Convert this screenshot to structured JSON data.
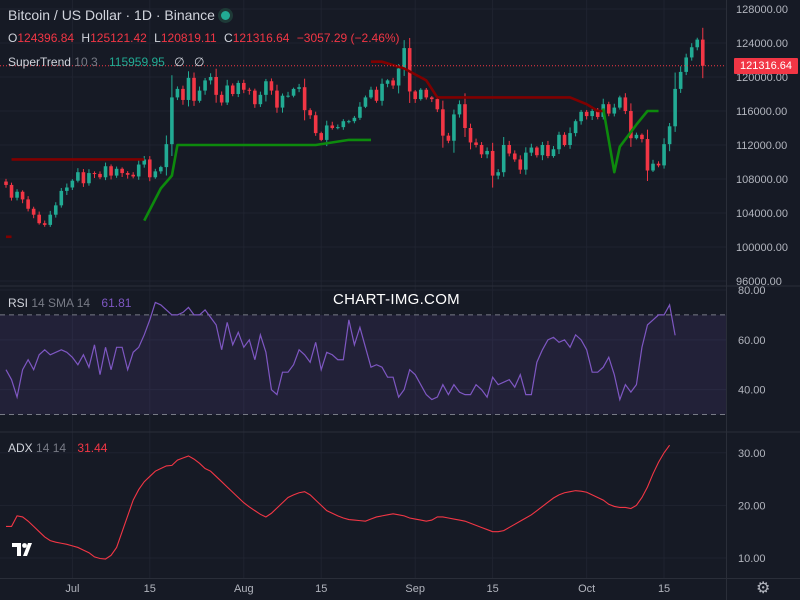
{
  "header": {
    "title": "Bitcoin / US Dollar · 1D · Binance",
    "ohlc": {
      "o_label": "O",
      "o_value": "124396.84",
      "h_label": "H",
      "h_value": "125121.42",
      "l_label": "L",
      "l_value": "120819.11",
      "c_label": "C",
      "c_value": "121316.64",
      "change": "−3057.29 (−2.46%)"
    },
    "supertrend": {
      "name": "SuperTrend",
      "params": "10 3",
      "value": "115959.95",
      "na1": "∅",
      "na2": "∅"
    }
  },
  "watermark": "CHART-IMG.COM",
  "last_price_label": "121316.64",
  "rsi_header": {
    "name": "RSI",
    "params": "14 SMA 14",
    "value": "61.81"
  },
  "adx_header": {
    "name": "ADX",
    "params": "14 14",
    "value": "31.44"
  },
  "colors": {
    "background": "#161a25",
    "up": "#22ab94",
    "down": "#f23645",
    "supertrend_up": "#0d8a0d",
    "supertrend_down": "#800000",
    "rsi_line": "#7e57c2",
    "adx_line": "#f23645"
  },
  "chart_data": [
    {
      "type": "candlestick",
      "title": "Bitcoin / US Dollar · 1D · Binance",
      "ylim": [
        96000,
        128000
      ],
      "y_ticks": [
        "96000.00",
        "100000.00",
        "104000.00",
        "108000.00",
        "112000.00",
        "116000.00",
        "120000.00",
        "124000.00",
        "128000.00"
      ],
      "x_ticks": [
        "Jul",
        "15",
        "Aug",
        "15",
        "Sep",
        "15",
        "Oct",
        "15"
      ],
      "last_close": 121316.64,
      "closes": [
        107300,
        105800,
        106500,
        105600,
        104500,
        103800,
        102800,
        102600,
        103800,
        104900,
        106600,
        107000,
        107800,
        108800,
        107500,
        108700,
        108600,
        108200,
        109500,
        108400,
        109200,
        108700,
        108500,
        108300,
        109700,
        110300,
        108200,
        108900,
        109400,
        112100,
        117600,
        118600,
        117300,
        119900,
        117200,
        118400,
        119600,
        120000,
        117900,
        117000,
        119000,
        118000,
        119300,
        118500,
        118400,
        116800,
        117900,
        119500,
        118400,
        116400,
        117800,
        117800,
        118600,
        118800,
        116100,
        115500,
        113400,
        112600,
        114300,
        114000,
        114100,
        114800,
        114800,
        115200,
        116500,
        117600,
        118500,
        117200,
        119200,
        119600,
        119000,
        121000,
        123400,
        118300,
        117400,
        118500,
        117600,
        117400,
        116200,
        113100,
        112500,
        115600,
        116800,
        114000,
        112300,
        112000,
        110900,
        111300,
        108400,
        108800,
        112000,
        111000,
        110300,
        109100,
        111100,
        111700,
        110800,
        112000,
        110700,
        111500,
        113200,
        112000,
        113400,
        114800,
        115900,
        115400,
        116000,
        115300,
        116800,
        115700,
        116400,
        117600,
        116000,
        112800,
        113200,
        112700,
        109000,
        109800,
        109600,
        112100,
        114200,
        118600,
        120600,
        122300,
        123500,
        124400,
        121317
      ],
      "supertrend": {
        "current_value": 115959.95,
        "segments": [
          {
            "trend": "down",
            "points": [
              [
                0,
                101200
              ],
              [
                1,
                101200
              ]
            ]
          },
          {
            "trend": "down",
            "points": [
              [
                1,
                110300
              ],
              [
                25,
                110300
              ]
            ]
          },
          {
            "trend": "up",
            "points": [
              [
                25,
                103100
              ],
              [
                28,
                106900
              ],
              [
                30,
                108400
              ],
              [
                31,
                112000
              ],
              [
                56,
                112000
              ],
              [
                62,
                112600
              ],
              [
                66,
                112600
              ]
            ]
          },
          {
            "trend": "down",
            "points": [
              [
                66,
                121800
              ],
              [
                68,
                121800
              ],
              [
                72,
                121000
              ],
              [
                76,
                119600
              ],
              [
                78,
                117600
              ],
              [
                102,
                117600
              ],
              [
                105,
                116800
              ],
              [
                107,
                116000
              ],
              [
                108,
                116000
              ]
            ]
          },
          {
            "trend": "up",
            "points": [
              [
                108,
                116300
              ],
              [
                110,
                108800
              ],
              [
                111,
                111800
              ],
              [
                114,
                114400
              ],
              [
                116,
                116000
              ],
              [
                118,
                116000
              ]
            ]
          }
        ]
      }
    },
    {
      "type": "line",
      "title": "RSI 14 SMA 14",
      "ylim": [
        25,
        80
      ],
      "y_ticks": [
        "40.00",
        "60.00",
        "80.00"
      ],
      "reference_lines": [
        70,
        30
      ],
      "values": [
        48,
        44,
        37,
        48,
        52,
        48,
        54,
        56,
        54,
        55,
        56,
        55,
        53,
        50,
        54,
        49,
        58,
        46,
        57,
        48,
        57,
        57,
        48,
        55,
        57,
        62,
        68,
        75,
        74,
        72,
        70,
        70,
        71,
        73,
        70,
        70,
        72,
        69,
        66,
        56,
        67,
        58,
        63,
        57,
        60,
        52,
        62,
        55,
        40,
        38,
        47,
        47,
        50,
        56,
        54,
        51,
        59,
        48,
        55,
        54,
        52,
        52,
        68,
        58,
        65,
        57,
        49,
        50,
        49,
        45,
        45,
        37,
        40,
        48,
        46,
        42,
        38,
        36,
        37,
        42,
        38,
        42,
        39,
        38,
        38,
        42,
        40,
        37,
        45,
        42,
        43,
        44,
        41,
        46,
        38,
        38,
        51,
        56,
        60,
        61,
        59,
        60,
        57,
        62,
        60,
        56,
        47,
        47,
        49,
        53,
        46,
        36,
        42,
        39,
        42,
        57,
        66,
        68,
        70,
        70,
        74,
        61.81
      ]
    },
    {
      "type": "line",
      "title": "ADX 14 14",
      "ylim": [
        6,
        33
      ],
      "y_ticks": [
        "10.00",
        "20.00",
        "30.00"
      ],
      "values": [
        16,
        16,
        18,
        17.8,
        17,
        16,
        15,
        14,
        13.3,
        13,
        12.8,
        12.6,
        12.3,
        12,
        11.5,
        11,
        10.2,
        9.9,
        9.8,
        10.5,
        12,
        15,
        18,
        21,
        23,
        24.5,
        25.5,
        26.5,
        27,
        27.5,
        27.6,
        28.6,
        29,
        29.4,
        28.8,
        28,
        27,
        26.5,
        25.5,
        24.5,
        23.5,
        22.5,
        21.5,
        20.5,
        19.7,
        19,
        18.3,
        17.8,
        18.5,
        19.5,
        20.5,
        21.5,
        22,
        22.4,
        22.6,
        22,
        21,
        20,
        19,
        18.5,
        18,
        17.6,
        17.3,
        17.2,
        17.1,
        17,
        17.4,
        17.8,
        18,
        18.2,
        18.4,
        18.2,
        18,
        17.6,
        17.4,
        17.2,
        17,
        17.2,
        17.8,
        17.8,
        17.6,
        17.4,
        17.2,
        17,
        16.6,
        16.2,
        15.8,
        15.4,
        15,
        15,
        15.2,
        15.8,
        16.4,
        17,
        17.6,
        18.2,
        19,
        19.8,
        20.6,
        21.4,
        22,
        22.4,
        22.6,
        22.8,
        22.7,
        22.5,
        22,
        21.5,
        21,
        20.2,
        19.8,
        19.6,
        19.6,
        19.4,
        20,
        21.5,
        23.5,
        26,
        28.2,
        30,
        31.44
      ]
    }
  ]
}
